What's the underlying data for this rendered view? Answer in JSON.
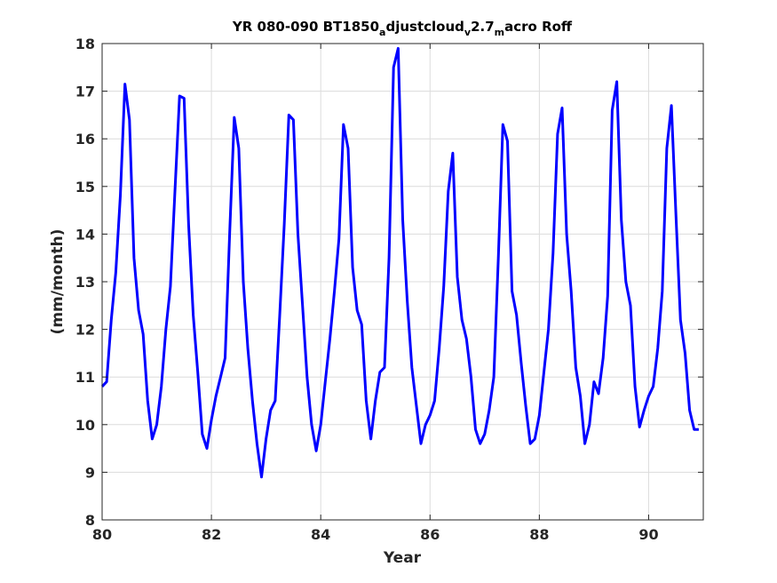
{
  "chart_data": {
    "type": "line",
    "title": {
      "parts": [
        {
          "text": "YR 080-090 BT1850",
          "sub": false
        },
        {
          "text": "a",
          "sub": true
        },
        {
          "text": "djustcloud",
          "sub": false
        },
        {
          "text": "v",
          "sub": true
        },
        {
          "text": "2.7",
          "sub": false
        },
        {
          "text": "m",
          "sub": true
        },
        {
          "text": "acro Roff",
          "sub": false
        }
      ]
    },
    "xlabel": "Year",
    "ylabel": "(mm/month)",
    "xlim": [
      80,
      91
    ],
    "ylim": [
      8,
      18
    ],
    "xticks": [
      80,
      82,
      84,
      86,
      88,
      90
    ],
    "yticks": [
      8,
      9,
      10,
      11,
      12,
      13,
      14,
      15,
      16,
      17,
      18
    ],
    "grid": true,
    "line_color": "#0000ff",
    "series": [
      {
        "x": [
          80.0,
          80.083,
          80.167,
          80.25,
          80.333,
          80.417,
          80.5,
          80.583,
          80.667,
          80.75,
          80.833,
          80.917,
          81.0,
          81.083,
          81.167,
          81.25,
          81.333,
          81.417,
          81.5,
          81.583,
          81.667,
          81.75,
          81.833,
          81.917,
          82.0,
          82.083,
          82.167,
          82.25,
          82.333,
          82.417,
          82.5,
          82.583,
          82.667,
          82.75,
          82.833,
          82.917,
          83.0,
          83.083,
          83.167,
          83.25,
          83.333,
          83.417,
          83.5,
          83.583,
          83.667,
          83.75,
          83.833,
          83.917,
          84.0,
          84.083,
          84.167,
          84.25,
          84.333,
          84.417,
          84.5,
          84.583,
          84.667,
          84.75,
          84.833,
          84.917,
          85.0,
          85.083,
          85.167,
          85.25,
          85.333,
          85.417,
          85.5,
          85.583,
          85.667,
          85.75,
          85.833,
          85.917,
          86.0,
          86.083,
          86.167,
          86.25,
          86.333,
          86.417,
          86.5,
          86.583,
          86.667,
          86.75,
          86.833,
          86.917,
          87.0,
          87.083,
          87.167,
          87.25,
          87.333,
          87.417,
          87.5,
          87.583,
          87.667,
          87.75,
          87.833,
          87.917,
          88.0,
          88.083,
          88.167,
          88.25,
          88.333,
          88.417,
          88.5,
          88.583,
          88.667,
          88.75,
          88.833,
          88.917,
          89.0,
          89.083,
          89.167,
          89.25,
          89.333,
          89.417,
          89.5,
          89.583,
          89.667,
          89.75,
          89.833,
          89.917,
          90.0,
          90.083,
          90.167,
          90.25,
          90.333,
          90.417,
          90.5,
          90.583,
          90.667,
          90.75,
          90.833,
          90.917
        ],
        "y": [
          10.8,
          10.9,
          12.2,
          13.2,
          14.8,
          17.15,
          16.4,
          13.5,
          12.4,
          11.9,
          10.5,
          9.7,
          10.0,
          10.8,
          12.0,
          12.9,
          14.9,
          16.9,
          16.85,
          14.2,
          12.3,
          11.1,
          9.8,
          9.5,
          10.1,
          10.6,
          11.0,
          11.4,
          14.0,
          16.45,
          15.8,
          13.0,
          11.6,
          10.5,
          9.6,
          8.9,
          9.7,
          10.3,
          10.5,
          12.3,
          14.2,
          16.5,
          16.4,
          14.0,
          12.5,
          11.0,
          10.0,
          9.45,
          10.0,
          10.9,
          11.8,
          12.8,
          13.9,
          16.3,
          15.8,
          13.3,
          12.4,
          12.1,
          10.5,
          9.7,
          10.5,
          11.1,
          11.2,
          13.5,
          17.5,
          17.9,
          14.3,
          12.6,
          11.2,
          10.4,
          9.6,
          10.0,
          10.2,
          10.5,
          11.6,
          12.9,
          14.9,
          15.7,
          13.1,
          12.2,
          11.8,
          11.0,
          9.9,
          9.6,
          9.8,
          10.3,
          11.0,
          13.5,
          16.3,
          15.95,
          12.8,
          12.3,
          11.3,
          10.4,
          9.6,
          9.7,
          10.2,
          11.1,
          12.0,
          13.6,
          16.1,
          16.65,
          14.0,
          12.8,
          11.2,
          10.6,
          9.6,
          10.0,
          10.9,
          10.65,
          11.4,
          12.7,
          16.6,
          17.2,
          14.3,
          13.0,
          12.5,
          10.8,
          9.95,
          10.3,
          10.6,
          10.8,
          11.6,
          12.8,
          15.8,
          16.7,
          14.4,
          12.2,
          11.5,
          10.3,
          9.9,
          9.9
        ]
      }
    ]
  }
}
